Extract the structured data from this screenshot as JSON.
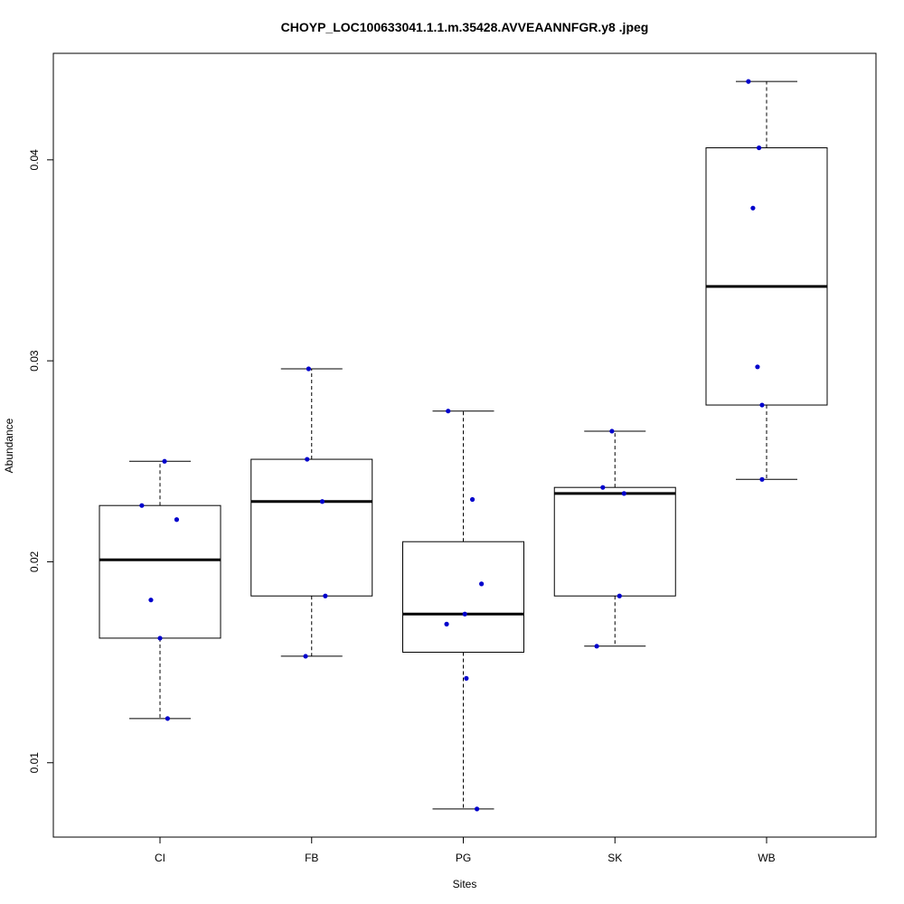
{
  "chart_data": {
    "type": "boxplot",
    "title": "CHOYP_LOC100633041.1.1.m.35428.AVVEAANNFGR.y8 .jpeg",
    "xlabel": "Sites",
    "ylabel": "Abundance",
    "ylim": [
      0.0063,
      0.0453
    ],
    "yticks": [
      0.01,
      0.02,
      0.03,
      0.04
    ],
    "ytick_labels": [
      "0.01",
      "0.02",
      "0.03",
      "0.04"
    ],
    "categories": [
      "CI",
      "FB",
      "PG",
      "SK",
      "WB"
    ],
    "boxes": [
      {
        "name": "CI",
        "whisker_low": 0.0122,
        "q1": 0.0162,
        "median": 0.0201,
        "q3": 0.0228,
        "whisker_high": 0.025
      },
      {
        "name": "FB",
        "whisker_low": 0.0153,
        "q1": 0.0183,
        "median": 0.023,
        "q3": 0.0251,
        "whisker_high": 0.0296
      },
      {
        "name": "PG",
        "whisker_low": 0.0077,
        "q1": 0.0155,
        "median": 0.0174,
        "q3": 0.021,
        "whisker_high": 0.0275
      },
      {
        "name": "SK",
        "whisker_low": 0.0158,
        "q1": 0.0183,
        "median": 0.0234,
        "q3": 0.0237,
        "whisker_high": 0.0265
      },
      {
        "name": "WB",
        "whisker_low": 0.0241,
        "q1": 0.0278,
        "median": 0.0337,
        "q3": 0.0406,
        "whisker_high": 0.0439
      }
    ],
    "points": [
      {
        "category": "CI",
        "y": 0.025,
        "jitter": 0.03
      },
      {
        "category": "CI",
        "y": 0.0228,
        "jitter": -0.12
      },
      {
        "category": "CI",
        "y": 0.0221,
        "jitter": 0.11
      },
      {
        "category": "CI",
        "y": 0.0181,
        "jitter": -0.06
      },
      {
        "category": "CI",
        "y": 0.0162,
        "jitter": 0.0
      },
      {
        "category": "CI",
        "y": 0.0122,
        "jitter": 0.05
      },
      {
        "category": "FB",
        "y": 0.0296,
        "jitter": -0.02
      },
      {
        "category": "FB",
        "y": 0.0251,
        "jitter": -0.03
      },
      {
        "category": "FB",
        "y": 0.023,
        "jitter": 0.07
      },
      {
        "category": "FB",
        "y": 0.0183,
        "jitter": 0.09
      },
      {
        "category": "FB",
        "y": 0.0153,
        "jitter": -0.04
      },
      {
        "category": "PG",
        "y": 0.0275,
        "jitter": -0.1
      },
      {
        "category": "PG",
        "y": 0.0231,
        "jitter": 0.06
      },
      {
        "category": "PG",
        "y": 0.0189,
        "jitter": 0.12
      },
      {
        "category": "PG",
        "y": 0.0174,
        "jitter": 0.01
      },
      {
        "category": "PG",
        "y": 0.0169,
        "jitter": -0.11
      },
      {
        "category": "PG",
        "y": 0.0142,
        "jitter": 0.02
      },
      {
        "category": "PG",
        "y": 0.0077,
        "jitter": 0.09
      },
      {
        "category": "SK",
        "y": 0.0265,
        "jitter": -0.02
      },
      {
        "category": "SK",
        "y": 0.0237,
        "jitter": -0.08
      },
      {
        "category": "SK",
        "y": 0.0234,
        "jitter": 0.06
      },
      {
        "category": "SK",
        "y": 0.0183,
        "jitter": 0.03
      },
      {
        "category": "SK",
        "y": 0.0158,
        "jitter": -0.12
      },
      {
        "category": "WB",
        "y": 0.0439,
        "jitter": -0.12
      },
      {
        "category": "WB",
        "y": 0.0406,
        "jitter": -0.05
      },
      {
        "category": "WB",
        "y": 0.0376,
        "jitter": -0.09
      },
      {
        "category": "WB",
        "y": 0.0297,
        "jitter": -0.06
      },
      {
        "category": "WB",
        "y": 0.0278,
        "jitter": -0.03
      },
      {
        "category": "WB",
        "y": 0.0241,
        "jitter": -0.03
      }
    ],
    "point_color": "#0000cc",
    "box_color": "#000000",
    "grid": false,
    "legend": "none"
  }
}
